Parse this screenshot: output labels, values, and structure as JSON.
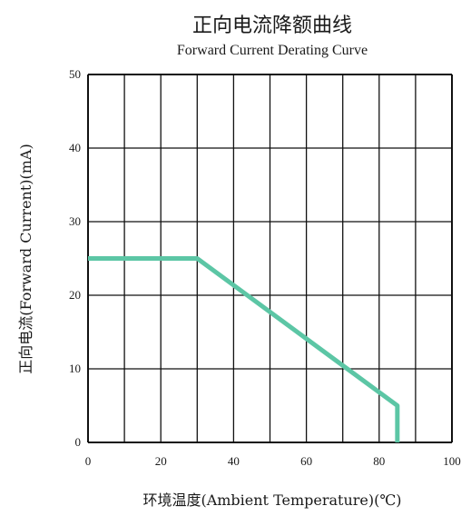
{
  "chart_data": {
    "type": "line",
    "title": "正向电流降额曲线",
    "subtitle": "Forward Current Derating Curve",
    "xlabel": "环境温度(Ambient Temperature)(℃)",
    "ylabel": "正向电流(Forward Current)(mA)",
    "xlim": [
      0,
      100
    ],
    "ylim": [
      0,
      50
    ],
    "x_ticks": [
      "0",
      "20",
      "40",
      "60",
      "80",
      "100"
    ],
    "y_ticks": [
      "0",
      "10",
      "20",
      "30",
      "40",
      "50"
    ],
    "grid": true,
    "series": [
      {
        "x": [
          0,
          30,
          85,
          85
        ],
        "y": [
          25,
          25,
          5,
          0
        ],
        "color": "#5cc6a5"
      }
    ]
  }
}
